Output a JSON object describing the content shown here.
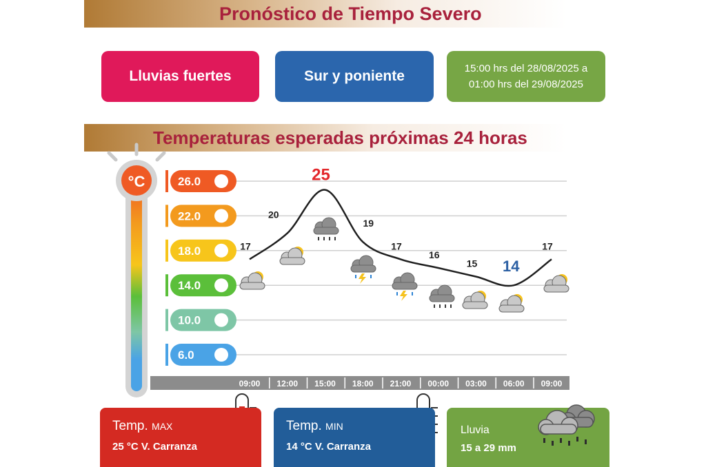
{
  "header": {
    "title": "Pronóstico de Tiempo Severo"
  },
  "alert": {
    "phenomenon": "Lluvias fuertes",
    "zone": "Sur y poniente",
    "period_line1": "15:00 hrs del 28/08/2025 a",
    "period_line2": "01:00 hrs del 29/08/2025"
  },
  "section": {
    "title": "Temperaturas esperadas próximas 24 horas"
  },
  "thermometer": {
    "unit_label": "°C"
  },
  "colors": {
    "scale": [
      "#ef5a24",
      "#f39a1e",
      "#f7c51b",
      "#5bbf3a",
      "#7ec6a6",
      "#4aa3e6"
    ],
    "max_card": "#d42a22",
    "min_card": "#225d99",
    "rain_card": "#73a443",
    "max_label": "#e3272b",
    "min_label": "#2b5fa3"
  },
  "chart_data": {
    "type": "line",
    "title": "Temperaturas esperadas próximas 24 horas",
    "xlabel": "",
    "ylabel": "°C",
    "categories": [
      "09:00",
      "12:00",
      "15:00",
      "18:00",
      "21:00",
      "00:00",
      "03:00",
      "06:00",
      "09:00"
    ],
    "values": [
      17,
      20,
      25,
      19,
      17,
      16,
      15,
      14,
      17
    ],
    "icons": [
      "partly-cloudy-icon",
      "partly-cloudy-icon",
      "rain-cloud-icon",
      "storm-cloud-icon",
      "storm-cloud-icon",
      "rain-cloud-icon",
      "partly-cloudy-icon",
      "partly-cloudy-icon",
      "partly-cloudy-icon"
    ],
    "y_scale": [
      "26.0",
      "22.0",
      "18.0",
      "14.0",
      "10.0",
      "6.0"
    ],
    "ylim": [
      6,
      26
    ],
    "grid": true,
    "max_value": 25,
    "min_value": 14
  },
  "cards": {
    "max": {
      "title": "Temp.",
      "qualifier": "MAX",
      "value": "25 °C  V. Carranza"
    },
    "min": {
      "title": "Temp.",
      "qualifier": "MIN",
      "value": "14 °C  V. Carranza"
    },
    "rain": {
      "title": "Lluvia",
      "value": "15 a 29 mm"
    }
  }
}
